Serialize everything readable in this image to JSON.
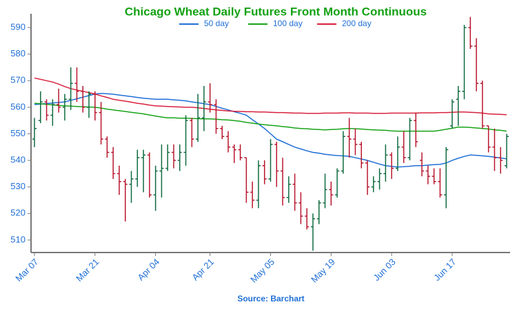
{
  "chart_data": {
    "type": "ohlc",
    "title": "Chicago Wheat Daily Futures Front Month Continuous",
    "source": "Source: Barchart",
    "legend_position": "top",
    "up_color": "#0f6b3f",
    "down_color": "#b8162c",
    "categories": [
      "Mar 07",
      null,
      null,
      null,
      null,
      null,
      null,
      null,
      null,
      null,
      "Mar 21",
      null,
      null,
      null,
      null,
      null,
      null,
      null,
      null,
      null,
      "Apr 04",
      null,
      null,
      null,
      null,
      null,
      null,
      null,
      null,
      "Apr 21",
      null,
      null,
      null,
      null,
      null,
      null,
      null,
      null,
      null,
      "May 05",
      null,
      null,
      null,
      null,
      null,
      null,
      null,
      null,
      null,
      "May 19",
      null,
      null,
      null,
      null,
      null,
      null,
      null,
      null,
      null,
      "Jun 03",
      null,
      null,
      null,
      null,
      null,
      null,
      null,
      null,
      null,
      "Jun 17",
      null,
      null,
      null,
      null,
      null,
      null,
      null,
      null,
      null
    ],
    "open": [
      548,
      555,
      562,
      557,
      561,
      560,
      563,
      569,
      566,
      560,
      565,
      558,
      548,
      543,
      535,
      532,
      531,
      533,
      541,
      542,
      527,
      536,
      537,
      543,
      540,
      543,
      555,
      548,
      556,
      562,
      561,
      552,
      549,
      545,
      544,
      541,
      528,
      525,
      538,
      533,
      546,
      536,
      526,
      531,
      524,
      519,
      515,
      518,
      524,
      529,
      527,
      536,
      549,
      548,
      546,
      539,
      530,
      532,
      535,
      542,
      537,
      545,
      541,
      555,
      540,
      536,
      534,
      532,
      527,
      553,
      563,
      566,
      590,
      583,
      569,
      553,
      545,
      541,
      538
    ],
    "high": [
      556,
      566,
      563,
      563,
      567,
      565,
      575,
      575,
      568,
      566,
      566,
      562,
      549,
      545,
      538,
      533,
      536,
      544,
      544,
      543,
      538,
      546,
      546,
      546,
      546,
      557,
      556,
      565,
      568,
      569,
      563,
      553,
      551,
      546,
      546,
      541,
      532,
      540,
      540,
      548,
      547,
      541,
      534,
      535,
      528,
      522,
      520,
      525,
      535,
      532,
      537,
      551,
      556,
      552,
      547,
      540,
      534,
      537,
      546,
      543,
      549,
      551,
      556,
      558,
      543,
      538,
      537,
      537,
      545,
      563,
      568,
      591,
      594,
      586,
      570,
      553,
      552,
      545,
      550
    ],
    "low": [
      545,
      554,
      555,
      553,
      558,
      555,
      559,
      562,
      558,
      556,
      555,
      546,
      541,
      533,
      527,
      517,
      524,
      530,
      528,
      526,
      521,
      526,
      536,
      537,
      536,
      538,
      545,
      547,
      551,
      558,
      550,
      548,
      543,
      539,
      540,
      524,
      522,
      522,
      531,
      532,
      530,
      523,
      524,
      521,
      516,
      514,
      506,
      516,
      522,
      523,
      526,
      535,
      541,
      542,
      537,
      527,
      528,
      529,
      532,
      533,
      536,
      539,
      540,
      545,
      534,
      531,
      531,
      526,
      522,
      552,
      553,
      563,
      582,
      566,
      552,
      543,
      536,
      535,
      537
    ],
    "close": [
      552,
      562,
      557,
      561,
      560,
      563,
      569,
      566,
      560,
      565,
      558,
      548,
      543,
      535,
      532,
      531,
      533,
      541,
      542,
      527,
      536,
      537,
      543,
      540,
      543,
      555,
      548,
      556,
      562,
      561,
      552,
      549,
      545,
      544,
      541,
      528,
      525,
      538,
      533,
      546,
      536,
      526,
      531,
      524,
      519,
      515,
      518,
      524,
      529,
      527,
      536,
      549,
      548,
      546,
      539,
      530,
      532,
      535,
      542,
      537,
      545,
      541,
      555,
      547,
      536,
      534,
      532,
      527,
      544,
      562,
      566,
      590,
      583,
      569,
      553,
      545,
      541,
      540,
      549
    ],
    "series": [
      {
        "name": "50 day",
        "color": "#1f6fd6",
        "values": [
          561,
          561.2,
          561.4,
          561.6,
          561.8,
          562,
          562.6,
          563.2,
          563.8,
          564.4,
          565,
          565.2,
          565.1,
          564.9,
          564.6,
          564.3,
          564,
          563.7,
          563.4,
          563.2,
          563,
          563,
          563,
          562.8,
          562.6,
          562.4,
          562,
          561.7,
          561.3,
          561,
          560.3,
          559.6,
          559,
          558.3,
          557.7,
          557,
          555.3,
          553.7,
          552,
          550,
          548,
          547,
          546,
          545,
          544.3,
          543.6,
          543,
          542.7,
          542.3,
          542,
          541.8,
          541.7,
          541.5,
          541,
          540.5,
          540,
          539.3,
          538.6,
          538,
          537.7,
          537.5,
          537.6,
          537.8,
          538,
          538,
          538.2,
          538.4,
          538.5,
          539,
          540,
          540.8,
          541.5,
          542,
          541.9,
          541.7,
          541.5,
          541.2,
          540.9,
          540.6
        ]
      },
      {
        "name": "100 day",
        "color": "#17a317",
        "values": [
          561.5,
          561.3,
          561.1,
          560.9,
          560.7,
          560.5,
          560.4,
          560.3,
          560.2,
          560.1,
          560,
          559.7,
          559.3,
          559,
          558.7,
          558.4,
          558.1,
          557.8,
          557.5,
          557.1,
          556.7,
          556.3,
          556,
          556,
          555.9,
          555.9,
          555.8,
          555.7,
          555.6,
          555.6,
          555.5,
          555.3,
          555.2,
          555,
          554.7,
          554.3,
          554,
          553.7,
          553.4,
          553.2,
          553,
          552.7,
          552.5,
          552.2,
          552,
          551.9,
          551.7,
          551.6,
          551.5,
          551.6,
          551.7,
          551.9,
          552,
          551.9,
          551.8,
          551.6,
          551.5,
          551.4,
          551.3,
          551.1,
          551,
          551,
          551,
          551,
          551,
          551,
          551,
          551.3,
          551.7,
          552.1,
          552.5,
          552.5,
          552.4,
          552.2,
          552,
          551.8,
          551.5,
          551.3,
          551
        ]
      },
      {
        "name": "200 day",
        "color": "#d8203c",
        "values": [
          571,
          570.5,
          570,
          569.5,
          568.7,
          567.8,
          567,
          566.5,
          566,
          565.5,
          565,
          564.3,
          563.7,
          563,
          562.6,
          562.3,
          561.9,
          561.5,
          561.2,
          560.8,
          560.5,
          560.4,
          560.3,
          560.2,
          560.1,
          560,
          560,
          559.8,
          559.5,
          559.3,
          559,
          558.8,
          558.6,
          558.5,
          558.4,
          558.3,
          558.3,
          558.2,
          558.2,
          558.1,
          558,
          558,
          557.9,
          557.8,
          557.8,
          557.7,
          557.7,
          557.7,
          557.8,
          557.8,
          557.8,
          557.9,
          557.9,
          557.8,
          557.8,
          557.8,
          557.7,
          557.7,
          557.7,
          557.8,
          557.8,
          557.8,
          557.8,
          557.8,
          557.9,
          557.9,
          557.9,
          558,
          558,
          558.1,
          558.2,
          558.2,
          558.1,
          558,
          557.8,
          557.5,
          557.4,
          557.3,
          557.2
        ]
      }
    ],
    "ylim": [
      505.3,
      595.2
    ],
    "yticks": [
      510,
      520,
      530,
      540,
      550,
      560,
      570,
      580,
      590
    ]
  }
}
